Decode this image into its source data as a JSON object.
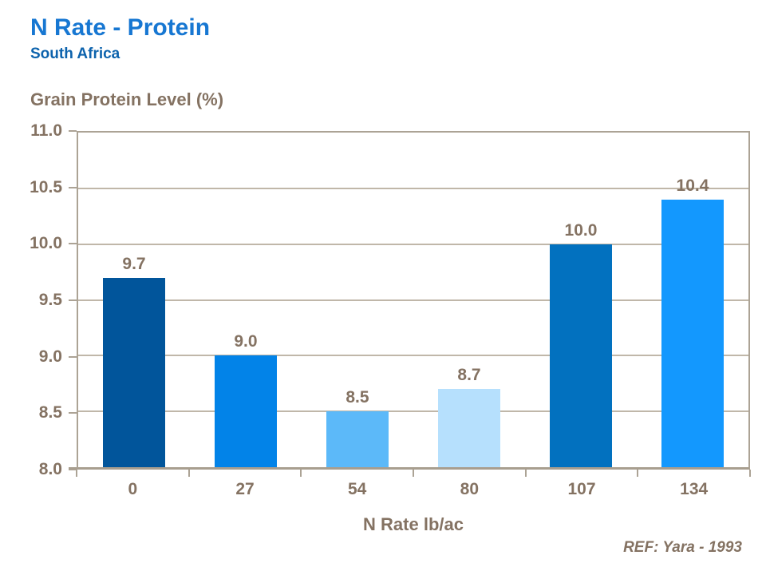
{
  "header": {
    "title": "N Rate - Protein",
    "subtitle": "South Africa"
  },
  "footer": {
    "ref": "REF: Yara - 1993"
  },
  "colors": {
    "title": "#1777D2",
    "subtitle": "#0D63AD",
    "text_brown": "#847262",
    "plot_border": "#ACA395",
    "gridline": "#C0B7A9",
    "axis_bottom": "#A89E8F"
  },
  "chart_data": {
    "type": "bar",
    "title": "N Rate - Protein",
    "subtitle": "South Africa",
    "ylabel": "Grain Protein Level (%)",
    "xlabel": "N Rate lb/ac",
    "categories": [
      "0",
      "27",
      "54",
      "80",
      "107",
      "134"
    ],
    "values": [
      9.7,
      9.0,
      8.5,
      8.7,
      10.0,
      10.4
    ],
    "data_labels": [
      "9.7",
      "9.0",
      "8.5",
      "8.7",
      "10.0",
      "10.4"
    ],
    "bar_colors": [
      "#01559B",
      "#0283E8",
      "#5CB9F9",
      "#B6E0FD",
      "#0271BF",
      "#1398FE"
    ],
    "ylim": [
      8.0,
      11.0
    ],
    "yticks": [
      8.0,
      8.5,
      9.0,
      9.5,
      10.0,
      10.5,
      11.0
    ],
    "ytick_labels": [
      "8.0",
      "8.5",
      "9.0",
      "9.5",
      "10.0",
      "10.5",
      "11.0"
    ],
    "grid": true,
    "legend": "none",
    "ref": "REF: Yara - 1993"
  }
}
